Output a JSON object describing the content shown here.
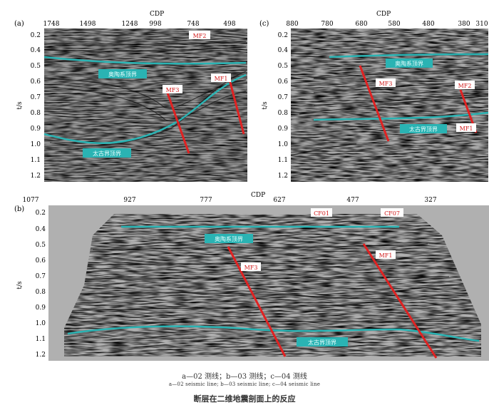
{
  "colors": {
    "fault": "#e02222",
    "horizon": "#2ab3b3",
    "label_bg": "#2ab3b3",
    "fault_label_bg": "#ffffff",
    "fault_label_text": "#d01818"
  },
  "panel_a": {
    "letter": "(a)",
    "cdp_title": "CDP",
    "cdp_ticks": [
      "1748",
      "1498",
      "1248",
      "998",
      "748",
      "498"
    ],
    "y_axis_label": "t/s",
    "y_ticks": [
      "0.2",
      "0.4",
      "0.5",
      "0.6",
      "0.7",
      "0.8",
      "0.9",
      "1.0",
      "1.1",
      "1.2"
    ],
    "horizon_labels": [
      "奥陶系顶界",
      "太古界顶界"
    ],
    "fault_labels": [
      "MF2",
      "MF1",
      "MF3"
    ]
  },
  "panel_c": {
    "letter": "(c)",
    "cdp_title": "CDP",
    "cdp_ticks": [
      "880",
      "780",
      "680",
      "580",
      "480",
      "380",
      "310"
    ],
    "y_axis_label": "t/s",
    "y_ticks": [
      "0.2",
      "0.4",
      "0.5",
      "0.6",
      "0.7",
      "0.8",
      "0.9",
      "1.0",
      "1.1",
      "1.2"
    ],
    "horizon_labels": [
      "奥陶系顶界",
      "太古界顶界"
    ],
    "fault_labels": [
      "MF3",
      "MF2",
      "MF1"
    ]
  },
  "panel_b": {
    "letter": "(b)",
    "cdp_title": "CDP",
    "cdp_ticks": [
      "1077",
      "927",
      "777",
      "627",
      "477",
      "327"
    ],
    "y_axis_label": "t/s",
    "y_ticks": [
      "0.2",
      "0.4",
      "0.5",
      "0.6",
      "0.7",
      "0.8",
      "0.9",
      "1.0",
      "1.1",
      "1.2"
    ],
    "horizon_labels": [
      "奥陶系顶界",
      "太古界顶界"
    ],
    "fault_labels": [
      "CF01",
      "CF07",
      "MF3",
      "MF1"
    ]
  },
  "caption": {
    "line1": "a—02 测线；b—03 测线；c—04 测线",
    "line2": "a—02 seismic line; b—03 seismic line; c—04 seismic line",
    "line3": "断层在二维地震剖面上的反应"
  }
}
